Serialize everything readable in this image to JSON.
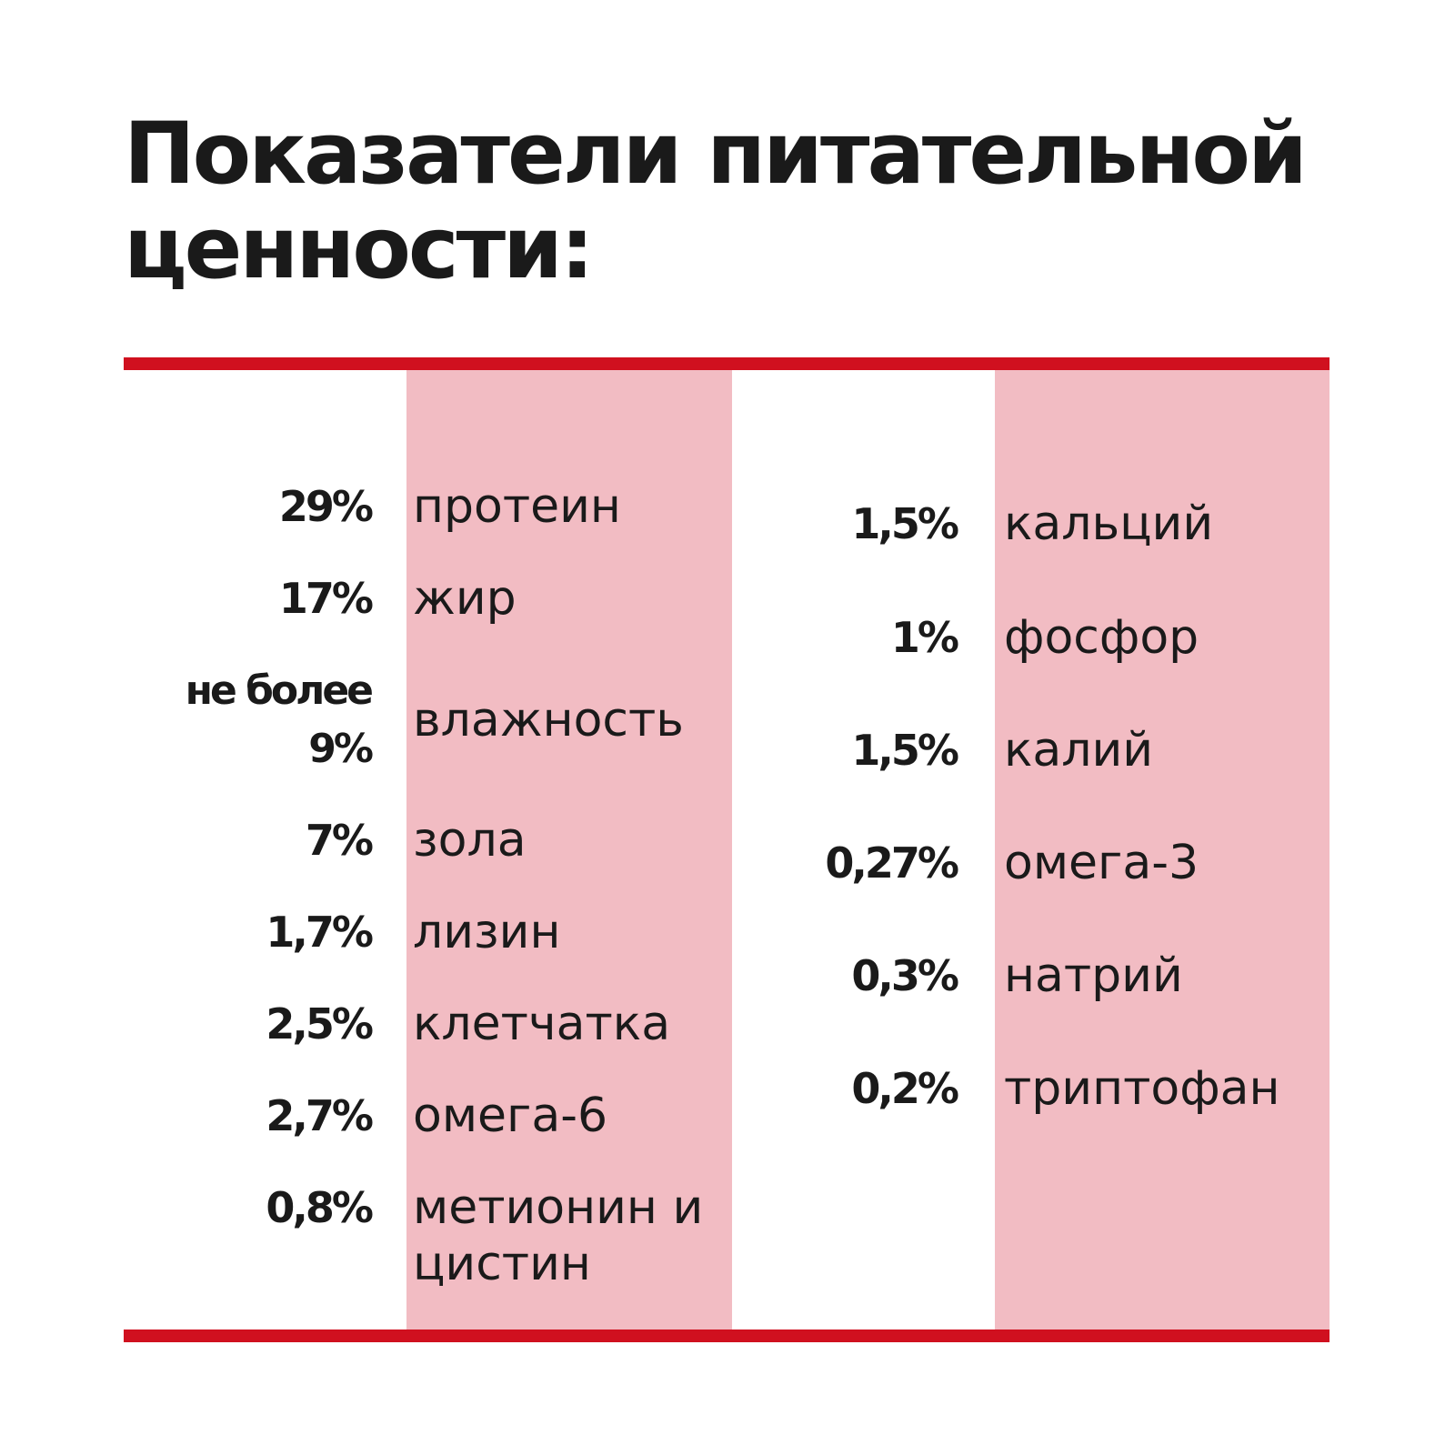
{
  "title": "Показатели питательной ценности:",
  "accent_color": "#d0101f",
  "band_color": "#f2bcc3",
  "left_items": [
    {
      "value": "29%",
      "name": "протеин"
    },
    {
      "value": "17%",
      "name": "жир"
    },
    {
      "value": "не более 9%",
      "name": "влажность"
    },
    {
      "value": "7%",
      "name": "зола"
    },
    {
      "value": "1,7%",
      "name": "лизин"
    },
    {
      "value": "2,5%",
      "name": "клетчатка"
    },
    {
      "value": "2,7%",
      "name": "омега-6"
    },
    {
      "value": "0,8%",
      "name": "метионин и цистин"
    }
  ],
  "right_items": [
    {
      "value": "1,5%",
      "name": "кальций"
    },
    {
      "value": "1%",
      "name": "фосфор"
    },
    {
      "value": "1,5%",
      "name": "калий"
    },
    {
      "value": "0,27%",
      "name": "омега-3"
    },
    {
      "value": "0,3%",
      "name": "натрий"
    },
    {
      "value": "0,2%",
      "name": "триптофан"
    }
  ]
}
